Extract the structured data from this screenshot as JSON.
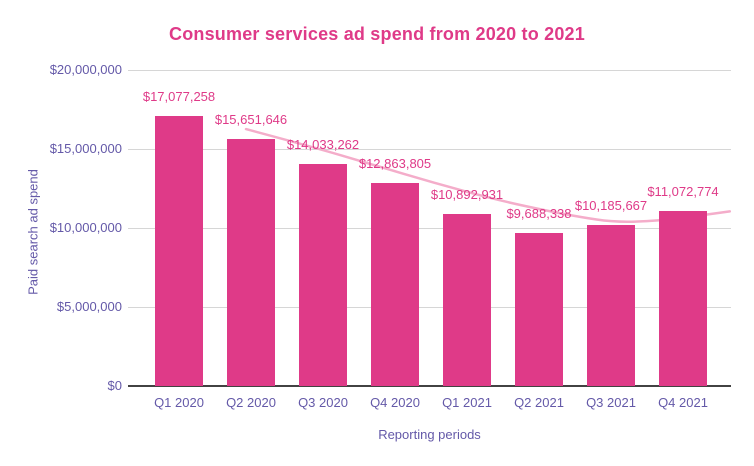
{
  "title": "Consumer services ad spend from 2020 to 2021",
  "chart_data": {
    "type": "bar",
    "title": "Consumer services ad spend from 2020 to 2021",
    "xlabel": "Reporting periods",
    "ylabel": "Paid search ad spend",
    "ylim": [
      0,
      20000000
    ],
    "grid": true,
    "legend": "none",
    "categories": [
      "Q1 2020",
      "Q2 2020",
      "Q3 2020",
      "Q4 2020",
      "Q1 2021",
      "Q2 2021",
      "Q3 2021",
      "Q4 2021"
    ],
    "points": [
      {
        "period": "Q1 2020",
        "value": 17077258,
        "label": "$17,077,258"
      },
      {
        "period": "Q2 2020",
        "value": 15651646,
        "label": "$15,651,646"
      },
      {
        "period": "Q3 2020",
        "value": 14033262,
        "label": "$14,033,262"
      },
      {
        "period": "Q4 2020",
        "value": 12863805,
        "label": "$12,863,805"
      },
      {
        "period": "Q1 2021",
        "value": 10892931,
        "label": "$10,892,931"
      },
      {
        "period": "Q2 2021",
        "value": 9688338,
        "label": "$9,688,338"
      },
      {
        "period": "Q3 2021",
        "value": 10185667,
        "label": "$10,185,667"
      },
      {
        "period": "Q4 2021",
        "value": 11072774,
        "label": "$11,072,774"
      }
    ],
    "yticks": [
      {
        "value": 20000000,
        "label": "$20,000,000"
      },
      {
        "value": 15000000,
        "label": "$15,000,000"
      },
      {
        "value": 10000000,
        "label": "$10,000,000"
      },
      {
        "value": 5000000,
        "label": "$5,000,000"
      },
      {
        "value": 0,
        "label": "$0"
      }
    ],
    "trendline": {
      "description": "smooth light-pink trend curve, descends from Q2 2020 to a minimum near Q3 2021 then rises",
      "points": [
        {
          "t": 0.93,
          "value": 16260000
        },
        {
          "t": 1.8,
          "value": 15200000
        },
        {
          "t": 2.7,
          "value": 14000000
        },
        {
          "t": 3.55,
          "value": 12850000
        },
        {
          "t": 4.4,
          "value": 11800000
        },
        {
          "t": 5.1,
          "value": 11100000
        },
        {
          "t": 5.6,
          "value": 10670000
        },
        {
          "t": 6.0,
          "value": 10400000
        },
        {
          "t": 6.45,
          "value": 10400000
        },
        {
          "t": 6.85,
          "value": 10560000
        },
        {
          "t": 7.25,
          "value": 10800000
        },
        {
          "t": 7.65,
          "value": 11050000
        }
      ]
    },
    "colors": {
      "bar": "#DF3A88",
      "data_label": "#DF3A88",
      "title": "#DF3A88",
      "trendline": "#F4ADCA",
      "axis_text": "#6459A8",
      "gridline": "#D6D6D6",
      "zero_line": "#424242",
      "background": "#FFFFFF"
    }
  }
}
